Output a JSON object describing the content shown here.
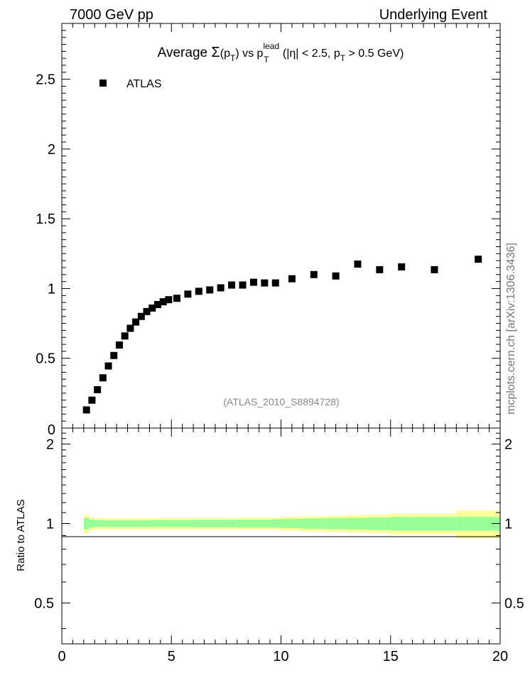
{
  "header": {
    "left": "7000 GeV pp",
    "right": "Underlying Event"
  },
  "title": {
    "prefix": "Average ",
    "sigma": "Σ",
    "p1": "(p",
    "sub1": "T",
    "p2": ") vs p",
    "sup": "lead",
    "sub2": "T",
    "p3": " (|η| < 2.5, p",
    "sub3": "T",
    "p4": " > 0.5 GeV)"
  },
  "legend": {
    "label": "ATLAS"
  },
  "analysis_id": "(ATLAS_2010_S8894728)",
  "side_label": "mcplots.cern.ch [arXiv:1306.3436]",
  "ratio_ylabel": "Ratio to ATLAS",
  "colors": {
    "marker": "#000000",
    "band_inner": "#99ff99",
    "band_outer": "#ffff99",
    "analysis_id": "#888888",
    "side_label": "#777777"
  },
  "chart_data": [
    {
      "type": "scatter",
      "panel": "main",
      "series": [
        {
          "name": "ATLAS",
          "x": [
            1.125,
            1.375,
            1.625,
            1.875,
            2.125,
            2.375,
            2.625,
            2.875,
            3.125,
            3.375,
            3.625,
            3.875,
            4.125,
            4.375,
            4.625,
            4.875,
            5.25,
            5.75,
            6.25,
            6.75,
            7.25,
            7.75,
            8.25,
            8.75,
            9.25,
            9.75,
            10.5,
            11.5,
            12.5,
            13.5,
            14.5,
            15.5,
            17.0,
            19.0
          ],
          "y": [
            0.13,
            0.2,
            0.275,
            0.36,
            0.445,
            0.52,
            0.595,
            0.66,
            0.715,
            0.76,
            0.8,
            0.835,
            0.86,
            0.885,
            0.905,
            0.92,
            0.93,
            0.96,
            0.98,
            0.99,
            1.005,
            1.025,
            1.025,
            1.045,
            1.04,
            1.04,
            1.07,
            1.1,
            1.09,
            1.175,
            1.135,
            1.155,
            1.135,
            1.21
          ]
        }
      ],
      "xlim": [
        0,
        20
      ],
      "ylim": [
        0,
        2.9
      ],
      "y_ticks": [
        0.5,
        1,
        1.5,
        2,
        2.5
      ],
      "y_tick_labels": [
        "0.5",
        "1",
        "1.5",
        "2",
        "2.5"
      ],
      "bottom_tick_label": "0",
      "xlabel": "",
      "ylabel": "",
      "legend_position": "top-left",
      "grid": false
    },
    {
      "type": "area",
      "panel": "ratio",
      "reference_line": 1,
      "bins": [
        {
          "lo": 1.0,
          "hi": 1.25,
          "inner": 0.05,
          "outer": 0.08
        },
        {
          "lo": 1.25,
          "hi": 1.5,
          "inner": 0.035,
          "outer": 0.055
        },
        {
          "lo": 1.5,
          "hi": 2.0,
          "inner": 0.03,
          "outer": 0.05
        },
        {
          "lo": 2.0,
          "hi": 4.0,
          "inner": 0.028,
          "outer": 0.05
        },
        {
          "lo": 4.0,
          "hi": 6.0,
          "inner": 0.03,
          "outer": 0.05
        },
        {
          "lo": 6.0,
          "hi": 8.0,
          "inner": 0.032,
          "outer": 0.05
        },
        {
          "lo": 8.0,
          "hi": 10.0,
          "inner": 0.035,
          "outer": 0.052
        },
        {
          "lo": 10.0,
          "hi": 11.0,
          "inner": 0.04,
          "outer": 0.06
        },
        {
          "lo": 11.0,
          "hi": 12.0,
          "inner": 0.045,
          "outer": 0.065
        },
        {
          "lo": 12.0,
          "hi": 13.0,
          "inner": 0.048,
          "outer": 0.07
        },
        {
          "lo": 13.0,
          "hi": 14.0,
          "inner": 0.05,
          "outer": 0.075
        },
        {
          "lo": 14.0,
          "hi": 15.0,
          "inner": 0.055,
          "outer": 0.08
        },
        {
          "lo": 15.0,
          "hi": 16.0,
          "inner": 0.06,
          "outer": 0.09
        },
        {
          "lo": 16.0,
          "hi": 18.0,
          "inner": 0.06,
          "outer": 0.09
        },
        {
          "lo": 18.0,
          "hi": 20.0,
          "inner": 0.06,
          "outer": 0.12
        }
      ],
      "xlim": [
        0,
        20
      ],
      "ylim": [
        0.35,
        2.3
      ],
      "y_ticks": [
        0.5,
        1,
        2
      ],
      "y_tick_labels": [
        "0.5",
        "1",
        "2"
      ],
      "x_ticks": [
        0,
        5,
        10,
        15,
        20
      ],
      "x_tick_labels": [
        "0",
        "5",
        "10",
        "15",
        "20"
      ],
      "ylabel": "Ratio to ATLAS"
    }
  ]
}
